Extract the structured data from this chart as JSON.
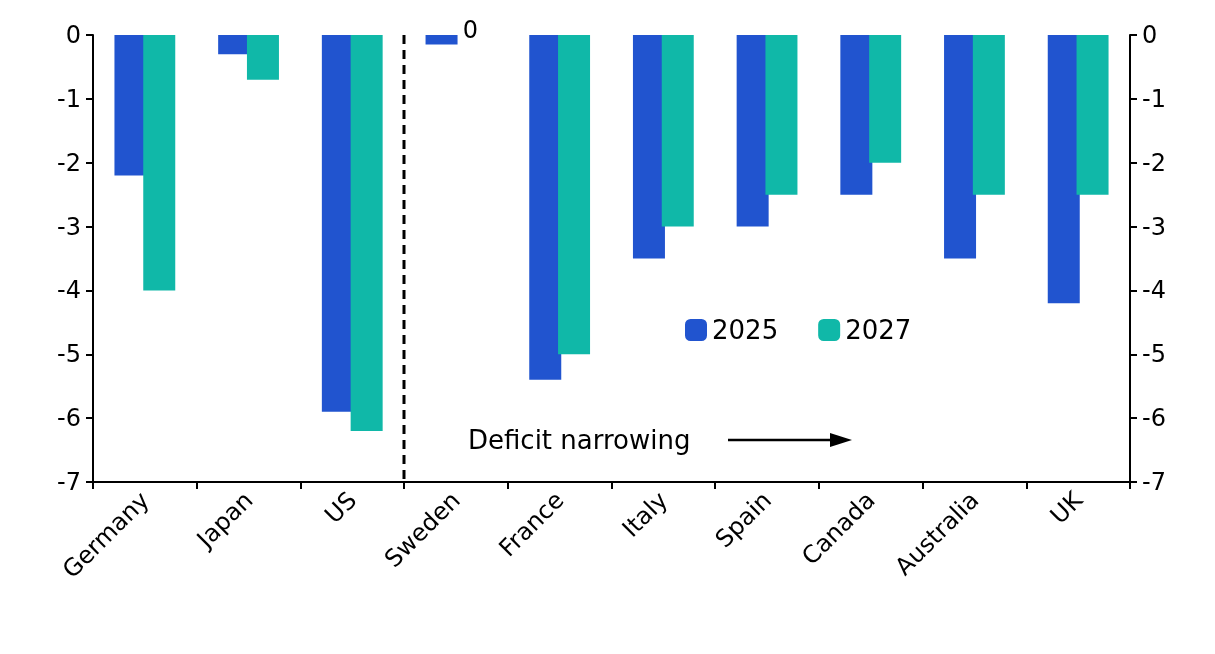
{
  "chart_data": {
    "type": "bar",
    "categories": [
      "Germany",
      "Japan",
      "US",
      "Sweden",
      "France",
      "Italy",
      "Spain",
      "Canada",
      "Australia",
      "UK"
    ],
    "series": [
      {
        "name": "2025",
        "color": "#2154cf",
        "values": [
          -2.2,
          -0.3,
          -5.9,
          -0.15,
          -5.4,
          -3.5,
          -3.0,
          -2.5,
          -3.5,
          -4.2
        ]
      },
      {
        "name": "2027",
        "color": "#10b8a8",
        "values": [
          -4.0,
          -0.7,
          -6.2,
          0,
          -5.0,
          -3.0,
          -2.5,
          -2.0,
          -2.5,
          -2.5
        ],
        "value_labels": [
          null,
          null,
          null,
          "0",
          null,
          null,
          null,
          null,
          null,
          null
        ]
      }
    ],
    "ylim": [
      -7,
      0
    ],
    "yticks": [
      -7,
      -6,
      -5,
      -4,
      -3,
      -2,
      -1,
      0
    ],
    "y2lim": [
      -7,
      0
    ],
    "y2ticks": [
      -7,
      -6,
      -5,
      -4,
      -3,
      -2,
      -1,
      0
    ],
    "annotations": [
      "Deficit narrowing"
    ],
    "legend": "right",
    "grid": false
  }
}
